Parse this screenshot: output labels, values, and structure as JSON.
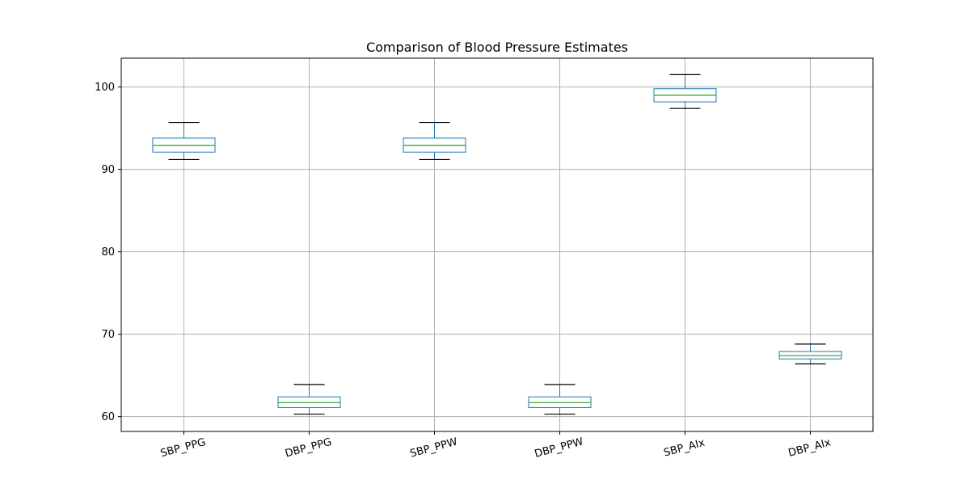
{
  "chart_data": {
    "type": "box",
    "title": "Comparison of Blood Pressure Estimates",
    "xlabel": "",
    "ylabel": "",
    "ylim": [
      58.2,
      103.5
    ],
    "yticks": [
      60,
      70,
      80,
      90,
      100
    ],
    "grid": true,
    "categories": [
      "SBP_PPG",
      "DBP_PPG",
      "SBP_PPW",
      "DBP_PPW",
      "SBP_AIx",
      "DBP_AIx"
    ],
    "boxes": [
      {
        "label": "SBP_PPG",
        "whislo": 91.2,
        "q1": 92.1,
        "med": 92.9,
        "q3": 93.8,
        "whishi": 95.7
      },
      {
        "label": "DBP_PPG",
        "whislo": 60.3,
        "q1": 61.1,
        "med": 61.7,
        "q3": 62.4,
        "whishi": 63.9
      },
      {
        "label": "SBP_PPW",
        "whislo": 91.2,
        "q1": 92.1,
        "med": 92.9,
        "q3": 93.8,
        "whishi": 95.7
      },
      {
        "label": "DBP_PPW",
        "whislo": 60.3,
        "q1": 61.1,
        "med": 61.7,
        "q3": 62.4,
        "whishi": 63.9
      },
      {
        "label": "SBP_AIx",
        "whislo": 97.4,
        "q1": 98.2,
        "med": 99.0,
        "q3": 99.8,
        "whishi": 101.5
      },
      {
        "label": "DBP_AIx",
        "whislo": 66.4,
        "q1": 67.0,
        "med": 67.4,
        "q3": 67.9,
        "whishi": 68.8
      }
    ],
    "colors": {
      "box": "#1f77b4",
      "median": "#2ca02c",
      "whisker_cap": "#000000",
      "grid": "#b0b0b0",
      "axes": "#000000"
    }
  }
}
